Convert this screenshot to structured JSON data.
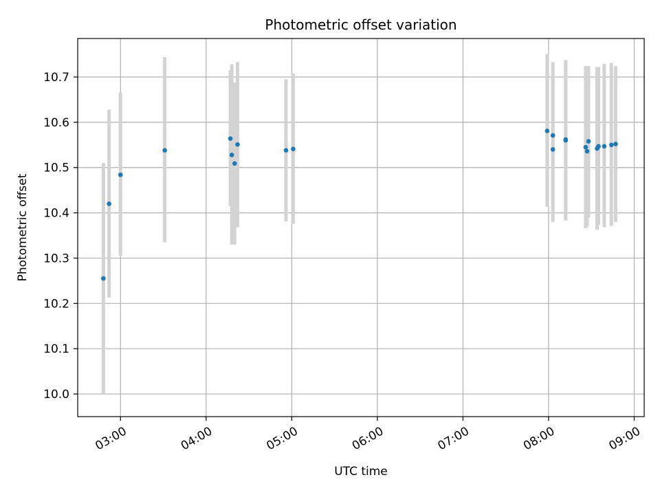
{
  "chart_data": {
    "type": "scatter",
    "title": "Photometric offset variation",
    "xlabel": "UTC time",
    "ylabel": "Photometric offset",
    "x_unit": "UTC time (HH:MM)",
    "xlim": [
      "02:30",
      "09:07"
    ],
    "ylim": [
      9.95,
      10.785
    ],
    "x_ticks": [
      "03:00",
      "04:00",
      "05:00",
      "06:00",
      "07:00",
      "08:00",
      "09:00"
    ],
    "y_ticks": [
      10.0,
      10.1,
      10.2,
      10.3,
      10.4,
      10.5,
      10.6,
      10.7
    ],
    "y_tick_labels": [
      "10.0",
      "10.1",
      "10.2",
      "10.3",
      "10.4",
      "10.5",
      "10.6",
      "10.7"
    ],
    "grid": true,
    "point_color": "#1f77b4",
    "errorbar_color": "#d3d3d3",
    "points": [
      {
        "x": "02:48",
        "y": 10.255,
        "err_low": 10.0,
        "err_high": 10.51
      },
      {
        "x": "02:52",
        "y": 10.42,
        "err_low": 10.213,
        "err_high": 10.628
      },
      {
        "x": "03:00",
        "y": 10.484,
        "err_low": 10.305,
        "err_high": 10.665
      },
      {
        "x": "03:31",
        "y": 10.538,
        "err_low": 10.335,
        "err_high": 10.744
      },
      {
        "x": "04:17",
        "y": 10.564,
        "err_low": 10.415,
        "err_high": 10.715
      },
      {
        "x": "04:18",
        "y": 10.528,
        "err_low": 10.33,
        "err_high": 10.728
      },
      {
        "x": "04:20",
        "y": 10.509,
        "err_low": 10.33,
        "err_high": 10.688
      },
      {
        "x": "04:22",
        "y": 10.551,
        "err_low": 10.368,
        "err_high": 10.733
      },
      {
        "x": "04:56",
        "y": 10.538,
        "err_low": 10.381,
        "err_high": 10.695
      },
      {
        "x": "05:01",
        "y": 10.541,
        "err_low": 10.376,
        "err_high": 10.708
      },
      {
        "x": "07:59",
        "y": 10.581,
        "err_low": 10.413,
        "err_high": 10.751
      },
      {
        "x": "08:03",
        "y": 10.54,
        "err_low": 10.38,
        "err_high": 10.7
      },
      {
        "x": "08:03",
        "y": 10.571,
        "err_low": 10.41,
        "err_high": 10.733
      },
      {
        "x": "08:12",
        "y": 10.56,
        "err_low": 10.383,
        "err_high": 10.737
      },
      {
        "x": "08:12",
        "y": 10.562,
        "err_low": 10.388,
        "err_high": 10.735
      },
      {
        "x": "08:26",
        "y": 10.545,
        "err_low": 10.366,
        "err_high": 10.724
      },
      {
        "x": "08:27",
        "y": 10.536,
        "err_low": 10.37,
        "err_high": 10.724
      },
      {
        "x": "08:28",
        "y": 10.558,
        "err_low": 10.39,
        "err_high": 10.724
      },
      {
        "x": "08:34",
        "y": 10.542,
        "err_low": 10.363,
        "err_high": 10.722
      },
      {
        "x": "08:35",
        "y": 10.547,
        "err_low": 10.373,
        "err_high": 10.722
      },
      {
        "x": "08:39",
        "y": 10.547,
        "err_low": 10.368,
        "err_high": 10.729
      },
      {
        "x": "08:44",
        "y": 10.55,
        "err_low": 10.371,
        "err_high": 10.731
      },
      {
        "x": "08:47",
        "y": 10.552,
        "err_low": 10.38,
        "err_high": 10.724
      }
    ]
  }
}
